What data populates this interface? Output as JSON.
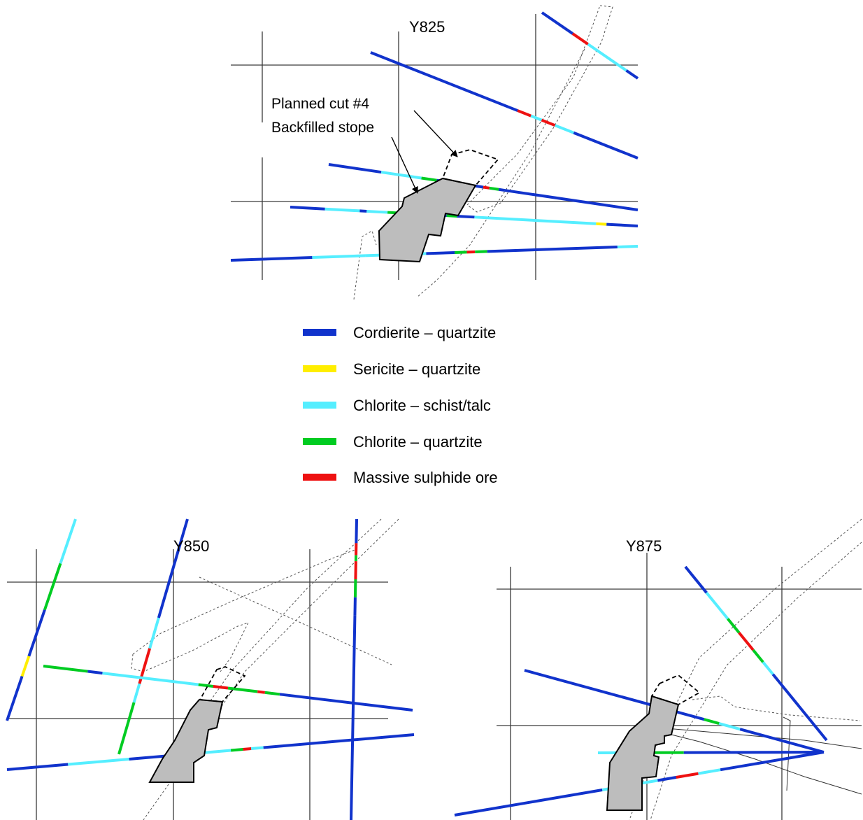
{
  "panels": {
    "top": {
      "label": "Y825"
    },
    "bottom_left": {
      "label": "Y850"
    },
    "bottom_right": {
      "label": "Y875"
    }
  },
  "annotations": {
    "planned_cut": "Planned cut #4",
    "backfilled_stope": "Backfilled stope"
  },
  "legend": [
    {
      "label": "Cordierite – quartzite",
      "color": "#1133cc"
    },
    {
      "label": "Sericite – quartzite",
      "color": "#ffee00"
    },
    {
      "label": "Chlorite – schist/talc",
      "color": "#55eeff"
    },
    {
      "label": "Chlorite – quartzite",
      "color": "#00cc22"
    },
    {
      "label": "Massive sulphide ore",
      "color": "#ee1111"
    }
  ]
}
